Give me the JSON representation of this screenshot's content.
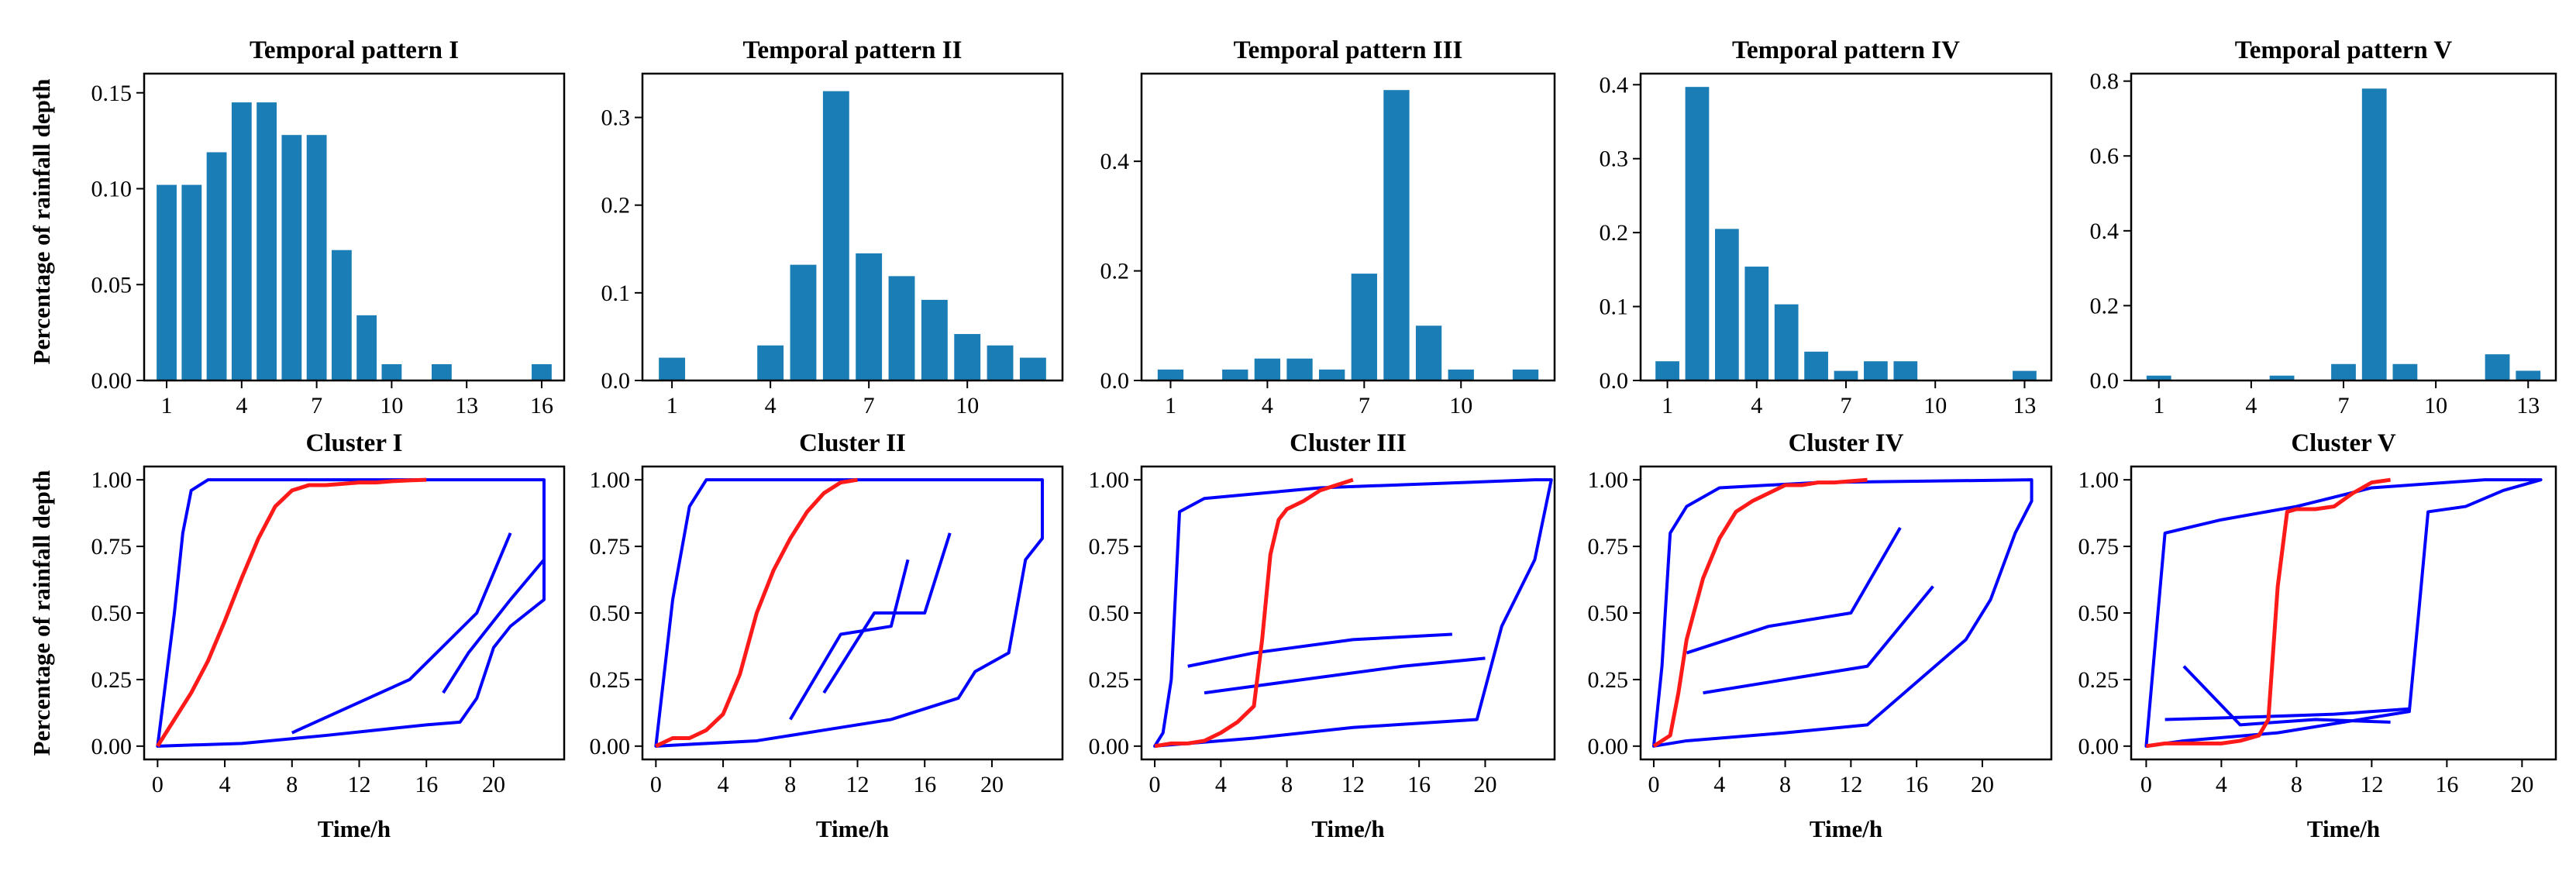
{
  "figure": {
    "row_ylabel": "Percentage of rainfall depth",
    "cluster_xlabel": "Time/h"
  },
  "chart_data": [
    {
      "type": "bar",
      "title": "Temporal pattern I",
      "ylabel": "Percentage of rainfall depth",
      "x": [
        1,
        2,
        3,
        4,
        5,
        6,
        7,
        8,
        9,
        10,
        11,
        12,
        13,
        14,
        15,
        16
      ],
      "values": [
        0.102,
        0.102,
        0.119,
        0.145,
        0.145,
        0.128,
        0.128,
        0.068,
        0.034,
        0.0085,
        0,
        0.0085,
        0,
        0,
        0,
        0.0085
      ],
      "xticks": [
        1,
        4,
        7,
        10,
        13,
        16
      ],
      "yticks": [
        0,
        0.05,
        0.1,
        0.15
      ],
      "ytick_labels": [
        "0.00",
        "0.05",
        "0.10",
        "0.15"
      ],
      "xlim": [
        0.1,
        16.9
      ],
      "ylim": [
        0,
        0.16
      ]
    },
    {
      "type": "bar",
      "title": "Temporal pattern II",
      "ylabel": "",
      "x": [
        1,
        2,
        3,
        4,
        5,
        6,
        7,
        8,
        9,
        10,
        11,
        12
      ],
      "values": [
        0.026,
        0,
        0,
        0.04,
        0.132,
        0.33,
        0.145,
        0.119,
        0.092,
        0.053,
        0.04,
        0.026
      ],
      "xticks": [
        1,
        4,
        7,
        10
      ],
      "yticks": [
        0,
        0.1,
        0.2,
        0.3
      ],
      "ytick_labels": [
        "0.0",
        "0.1",
        "0.2",
        "0.3"
      ],
      "xlim": [
        0.1,
        12.9
      ],
      "ylim": [
        0,
        0.35
      ]
    },
    {
      "type": "bar",
      "title": "Temporal pattern III",
      "ylabel": "",
      "x": [
        1,
        2,
        3,
        4,
        5,
        6,
        7,
        8,
        9,
        10,
        11,
        12
      ],
      "values": [
        0.02,
        0,
        0.02,
        0.04,
        0.04,
        0.02,
        0.195,
        0.53,
        0.1,
        0.02,
        0,
        0.02
      ],
      "xticks": [
        1,
        4,
        7,
        10
      ],
      "yticks": [
        0,
        0.2,
        0.4
      ],
      "ytick_labels": [
        "0.0",
        "0.2",
        "0.4"
      ],
      "xlim": [
        0.1,
        12.9
      ],
      "ylim": [
        0,
        0.56
      ]
    },
    {
      "type": "bar",
      "title": "Temporal pattern IV",
      "ylabel": "",
      "x": [
        1,
        2,
        3,
        4,
        5,
        6,
        7,
        8,
        9,
        10,
        11,
        12,
        13
      ],
      "values": [
        0.026,
        0.397,
        0.205,
        0.154,
        0.103,
        0.039,
        0.013,
        0.026,
        0.026,
        0,
        0,
        0,
        0.013
      ],
      "xticks": [
        1,
        4,
        7,
        10,
        13
      ],
      "yticks": [
        0,
        0.1,
        0.2,
        0.3,
        0.4
      ],
      "ytick_labels": [
        "0.0",
        "0.1",
        "0.2",
        "0.3",
        "0.4"
      ],
      "xlim": [
        0.1,
        13.9
      ],
      "ylim": [
        0,
        0.415
      ]
    },
    {
      "type": "bar",
      "title": "Temporal pattern V",
      "ylabel": "",
      "x": [
        1,
        2,
        3,
        4,
        5,
        6,
        7,
        8,
        9,
        10,
        11,
        12,
        13
      ],
      "values": [
        0.013,
        0,
        0,
        0,
        0.013,
        0,
        0.044,
        0.78,
        0.044,
        0,
        0,
        0.07,
        0.026
      ],
      "xticks": [
        1,
        4,
        7,
        10,
        13
      ],
      "yticks": [
        0,
        0.2,
        0.4,
        0.6,
        0.8
      ],
      "ytick_labels": [
        "0.0",
        "0.2",
        "0.4",
        "0.6",
        "0.8"
      ],
      "xlim": [
        0.1,
        13.9
      ],
      "ylim": [
        0,
        0.82
      ]
    },
    {
      "type": "line",
      "title": "Cluster I",
      "xlabel": "Time/h",
      "ylabel": "Percentage of rainfall depth",
      "xticks": [
        0,
        4,
        8,
        12,
        16,
        20
      ],
      "yticks": [
        0,
        0.25,
        0.5,
        0.75,
        1.0
      ],
      "ytick_labels": [
        "0.00",
        "0.25",
        "0.50",
        "0.75",
        "1.00"
      ],
      "xlim": [
        -0.8,
        24.2
      ],
      "ylim": [
        -0.05,
        1.05
      ],
      "envelope_polygons": [
        [
          [
            0,
            0
          ],
          [
            1,
            0.5
          ],
          [
            1.5,
            0.8
          ],
          [
            2,
            0.96
          ],
          [
            3,
            1.0
          ],
          [
            23,
            1.0
          ],
          [
            23,
            0.55
          ],
          [
            21,
            0.45
          ],
          [
            20,
            0.37
          ],
          [
            19,
            0.18
          ],
          [
            18,
            0.09
          ],
          [
            16,
            0.08
          ],
          [
            10,
            0.04
          ],
          [
            5,
            0.01
          ],
          [
            0,
            0
          ]
        ],
        [
          [
            17,
            0.2
          ],
          [
            18.5,
            0.35
          ],
          [
            21,
            0.55
          ],
          [
            23,
            0.7
          ]
        ],
        [
          [
            8,
            0.05
          ],
          [
            15,
            0.25
          ],
          [
            19,
            0.5
          ],
          [
            21,
            0.8
          ]
        ]
      ],
      "mean_curve": {
        "x": [
          0,
          1,
          2,
          3,
          4,
          5,
          6,
          7,
          8,
          9,
          10,
          11,
          12,
          13,
          14,
          15,
          16
        ],
        "y": [
          0,
          0.1,
          0.2,
          0.32,
          0.47,
          0.63,
          0.78,
          0.9,
          0.96,
          0.98,
          0.98,
          0.985,
          0.99,
          0.99,
          0.995,
          0.998,
          1.0
        ]
      }
    },
    {
      "type": "line",
      "title": "Cluster II",
      "xlabel": "Time/h",
      "ylabel": "",
      "xticks": [
        0,
        4,
        8,
        12,
        16,
        20
      ],
      "yticks": [
        0,
        0.25,
        0.5,
        0.75,
        1.0
      ],
      "ytick_labels": [
        "0.00",
        "0.25",
        "0.50",
        "0.75",
        "1.00"
      ],
      "xlim": [
        -0.8,
        24.2
      ],
      "ylim": [
        -0.05,
        1.05
      ],
      "envelope_polygons": [
        [
          [
            0,
            0
          ],
          [
            1,
            0.55
          ],
          [
            2,
            0.9
          ],
          [
            3,
            1.0
          ],
          [
            23,
            1.0
          ],
          [
            23,
            0.78
          ],
          [
            22,
            0.7
          ],
          [
            21,
            0.35
          ],
          [
            19,
            0.28
          ],
          [
            18,
            0.18
          ],
          [
            14,
            0.1
          ],
          [
            10,
            0.06
          ],
          [
            6,
            0.02
          ],
          [
            0,
            0
          ]
        ],
        [
          [
            10,
            0.2
          ],
          [
            13,
            0.5
          ],
          [
            16,
            0.5
          ],
          [
            17.5,
            0.8
          ]
        ],
        [
          [
            8,
            0.1
          ],
          [
            11,
            0.42
          ],
          [
            14,
            0.45
          ],
          [
            15,
            0.7
          ]
        ]
      ],
      "mean_curve": {
        "x": [
          0,
          1,
          2,
          3,
          4,
          5,
          6,
          7,
          8,
          9,
          10,
          11,
          12
        ],
        "y": [
          0,
          0.03,
          0.03,
          0.06,
          0.12,
          0.27,
          0.5,
          0.66,
          0.78,
          0.88,
          0.95,
          0.99,
          1.0
        ]
      }
    },
    {
      "type": "line",
      "title": "Cluster III",
      "xlabel": "Time/h",
      "ylabel": "",
      "xticks": [
        0,
        4,
        8,
        12,
        16,
        20
      ],
      "yticks": [
        0,
        0.25,
        0.5,
        0.75,
        1.0
      ],
      "ytick_labels": [
        "0.00",
        "0.25",
        "0.50",
        "0.75",
        "1.00"
      ],
      "xlim": [
        -0.8,
        24.2
      ],
      "ylim": [
        -0.05,
        1.05
      ],
      "envelope_polygons": [
        [
          [
            0,
            0
          ],
          [
            0.5,
            0.05
          ],
          [
            1,
            0.25
          ],
          [
            1.5,
            0.88
          ],
          [
            3,
            0.93
          ],
          [
            10,
            0.97
          ],
          [
            23,
            1.0
          ],
          [
            24,
            1.0
          ],
          [
            23,
            0.7
          ],
          [
            21,
            0.45
          ],
          [
            19.5,
            0.1
          ],
          [
            12,
            0.07
          ],
          [
            6,
            0.03
          ],
          [
            0,
            0
          ]
        ],
        [
          [
            2,
            0.3
          ],
          [
            6,
            0.35
          ],
          [
            12,
            0.4
          ],
          [
            18,
            0.42
          ]
        ],
        [
          [
            3,
            0.2
          ],
          [
            9,
            0.25
          ],
          [
            15,
            0.3
          ],
          [
            20,
            0.33
          ]
        ]
      ],
      "mean_curve": {
        "x": [
          0,
          1,
          2,
          3,
          4,
          5,
          6,
          6.5,
          7,
          7.5,
          8,
          9,
          10,
          11,
          12
        ],
        "y": [
          0,
          0.01,
          0.01,
          0.02,
          0.05,
          0.09,
          0.15,
          0.4,
          0.72,
          0.85,
          0.89,
          0.92,
          0.96,
          0.98,
          1.0
        ]
      }
    },
    {
      "type": "line",
      "title": "Cluster IV",
      "xlabel": "Time/h",
      "ylabel": "",
      "xticks": [
        0,
        4,
        8,
        12,
        16,
        20
      ],
      "yticks": [
        0,
        0.25,
        0.5,
        0.75,
        1.0
      ],
      "ytick_labels": [
        "0.00",
        "0.25",
        "0.50",
        "0.75",
        "1.00"
      ],
      "xlim": [
        -0.8,
        24.2
      ],
      "ylim": [
        -0.05,
        1.05
      ],
      "envelope_polygons": [
        [
          [
            0,
            0
          ],
          [
            0.5,
            0.3
          ],
          [
            1,
            0.8
          ],
          [
            2,
            0.9
          ],
          [
            4,
            0.97
          ],
          [
            10,
            0.99
          ],
          [
            23,
            1.0
          ],
          [
            23,
            0.92
          ],
          [
            22,
            0.8
          ],
          [
            20.5,
            0.55
          ],
          [
            19,
            0.4
          ],
          [
            13,
            0.08
          ],
          [
            8,
            0.05
          ],
          [
            2,
            0.02
          ],
          [
            0,
            0
          ]
        ],
        [
          [
            2,
            0.35
          ],
          [
            7,
            0.45
          ],
          [
            12,
            0.5
          ],
          [
            15,
            0.82
          ]
        ],
        [
          [
            3,
            0.2
          ],
          [
            8,
            0.25
          ],
          [
            13,
            0.3
          ],
          [
            17,
            0.6
          ]
        ]
      ],
      "mean_curve": {
        "x": [
          0,
          1,
          1.5,
          2,
          3,
          4,
          5,
          6,
          7,
          8,
          9,
          10,
          11,
          12,
          13
        ],
        "y": [
          0,
          0.04,
          0.2,
          0.4,
          0.63,
          0.78,
          0.88,
          0.92,
          0.95,
          0.98,
          0.98,
          0.99,
          0.99,
          0.995,
          1.0
        ]
      }
    },
    {
      "type": "line",
      "title": "Cluster V",
      "xlabel": "Time/h",
      "ylabel": "",
      "xticks": [
        0,
        4,
        8,
        12,
        16,
        20
      ],
      "yticks": [
        0,
        0.25,
        0.5,
        0.75,
        1.0
      ],
      "ytick_labels": [
        "0.00",
        "0.25",
        "0.50",
        "0.75",
        "1.00"
      ],
      "xlim": [
        -0.8,
        21.8
      ],
      "ylim": [
        -0.05,
        1.05
      ],
      "envelope_polygons": [
        [
          [
            0,
            0
          ],
          [
            0.5,
            0.4
          ],
          [
            1,
            0.8
          ],
          [
            4,
            0.85
          ],
          [
            8,
            0.9
          ],
          [
            12,
            0.97
          ],
          [
            18,
            1.0
          ],
          [
            21,
            1.0
          ],
          [
            19,
            0.96
          ],
          [
            17,
            0.9
          ],
          [
            15,
            0.88
          ],
          [
            14.5,
            0.5
          ],
          [
            14,
            0.13
          ],
          [
            7,
            0.05
          ],
          [
            2,
            0.02
          ],
          [
            0,
            0
          ]
        ],
        [
          [
            1,
            0.1
          ],
          [
            6,
            0.11
          ],
          [
            10,
            0.12
          ],
          [
            14,
            0.14
          ]
        ],
        [
          [
            2,
            0.3
          ],
          [
            5,
            0.08
          ],
          [
            9,
            0.1
          ],
          [
            13,
            0.09
          ]
        ]
      ],
      "mean_curve": {
        "x": [
          0,
          1,
          2,
          3,
          4,
          5,
          6,
          6.5,
          7,
          7.5,
          8,
          9,
          10,
          11,
          12,
          13
        ],
        "y": [
          0,
          0.01,
          0.01,
          0.01,
          0.01,
          0.02,
          0.04,
          0.1,
          0.6,
          0.88,
          0.89,
          0.89,
          0.9,
          0.95,
          0.99,
          1.0
        ]
      }
    }
  ]
}
